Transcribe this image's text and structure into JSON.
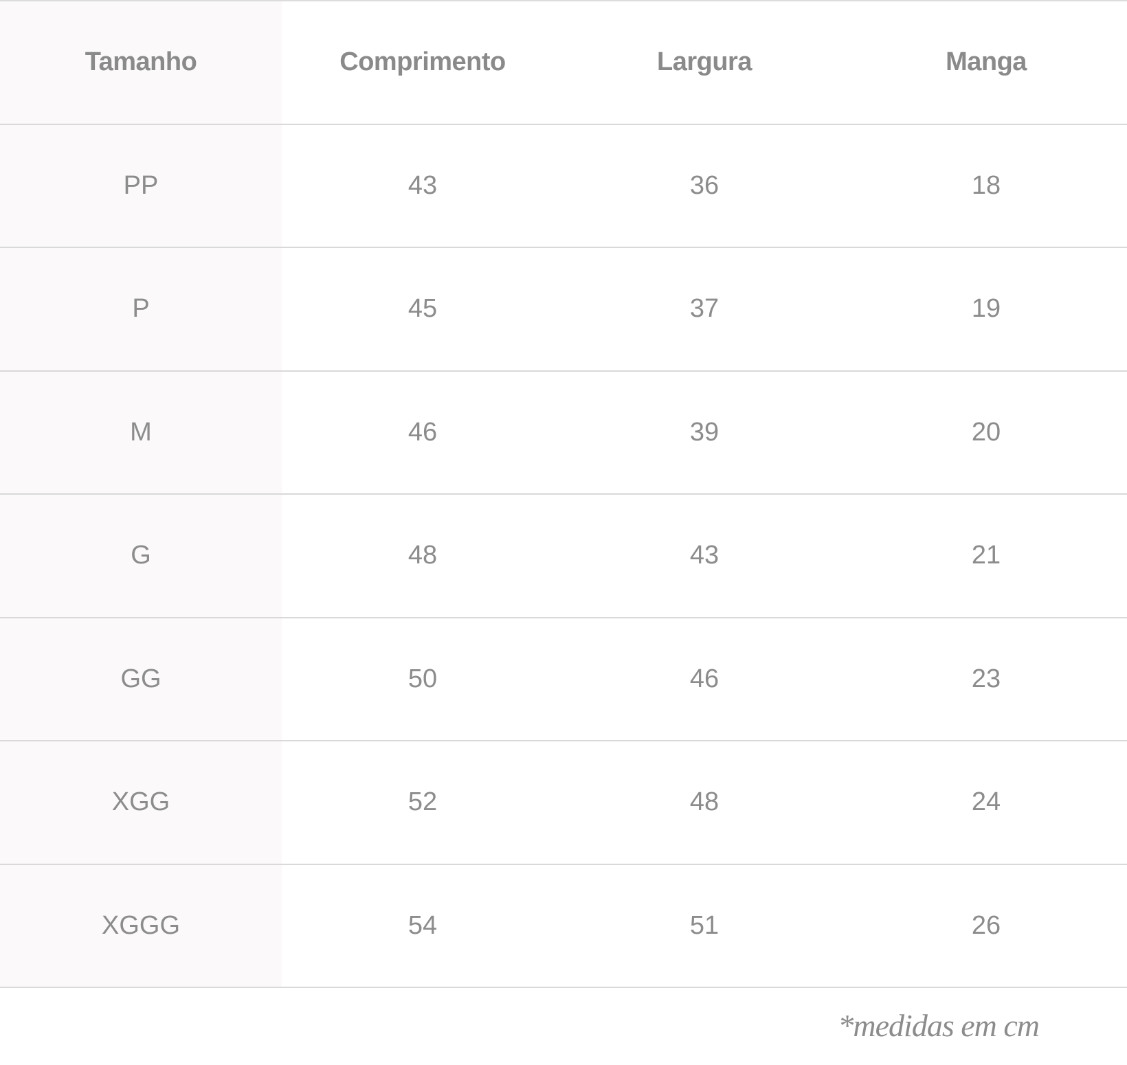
{
  "headers": [
    "Tamanho",
    "Comprimento",
    "Largura",
    "Manga"
  ],
  "rows": [
    [
      "PP",
      "43",
      "36",
      "18"
    ],
    [
      "P",
      "45",
      "37",
      "19"
    ],
    [
      "M",
      "46",
      "39",
      "20"
    ],
    [
      "G",
      "48",
      "43",
      "21"
    ],
    [
      "GG",
      "50",
      "46",
      "23"
    ],
    [
      "XGG",
      "52",
      "48",
      "24"
    ],
    [
      "XGGG",
      "54",
      "51",
      "26"
    ]
  ],
  "footnote": "*medidas em cm",
  "colors": {
    "text": "#8c8c8c",
    "first_column_bg": "#fbf9fa",
    "divider": "#d9d9d9"
  }
}
